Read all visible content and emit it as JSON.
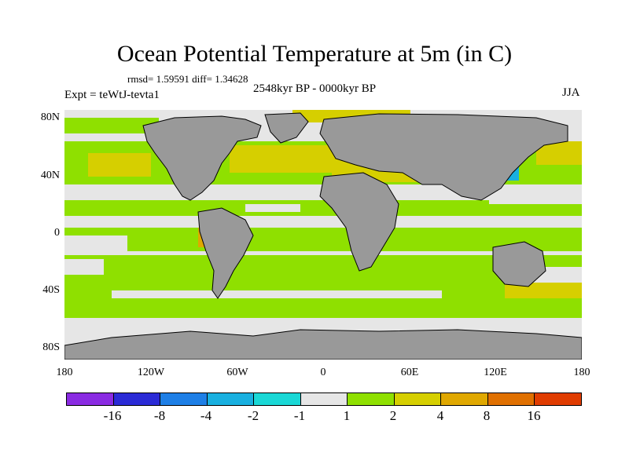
{
  "title": "Ocean Potential Temperature at 5m (in C)",
  "stats": "rmsd= 1.59591 diff= 1.34628",
  "period": "2548kyr BP - 0000kyr BP",
  "experiment": "Expt = teWtJ-tevta1",
  "season": "JJA",
  "lat_labels": [
    "80N",
    "40N",
    "0",
    "40S",
    "80S"
  ],
  "lon_labels": [
    "180",
    "120W",
    "60W",
    "0",
    "60E",
    "120E",
    "180"
  ],
  "colorbar": {
    "colors": [
      "#8a2be2",
      "#2b2bd6",
      "#1e7fe6",
      "#19b0e0",
      "#1ad8d6",
      "#e6e6e6",
      "#8fe000",
      "#d6cf00",
      "#e0a800",
      "#e07000",
      "#e03c00"
    ],
    "labels": [
      "-16",
      "-8",
      "-4",
      "-2",
      "-1",
      "1",
      "2",
      "4",
      "8",
      "16"
    ]
  },
  "map_colors": {
    "land": "#999999",
    "neutral": "#e6e6e6",
    "band_1_2": "#8fe000",
    "band_2_4": "#d6cf00",
    "band_4_8": "#e0a800",
    "cool": "#19b0e0"
  }
}
